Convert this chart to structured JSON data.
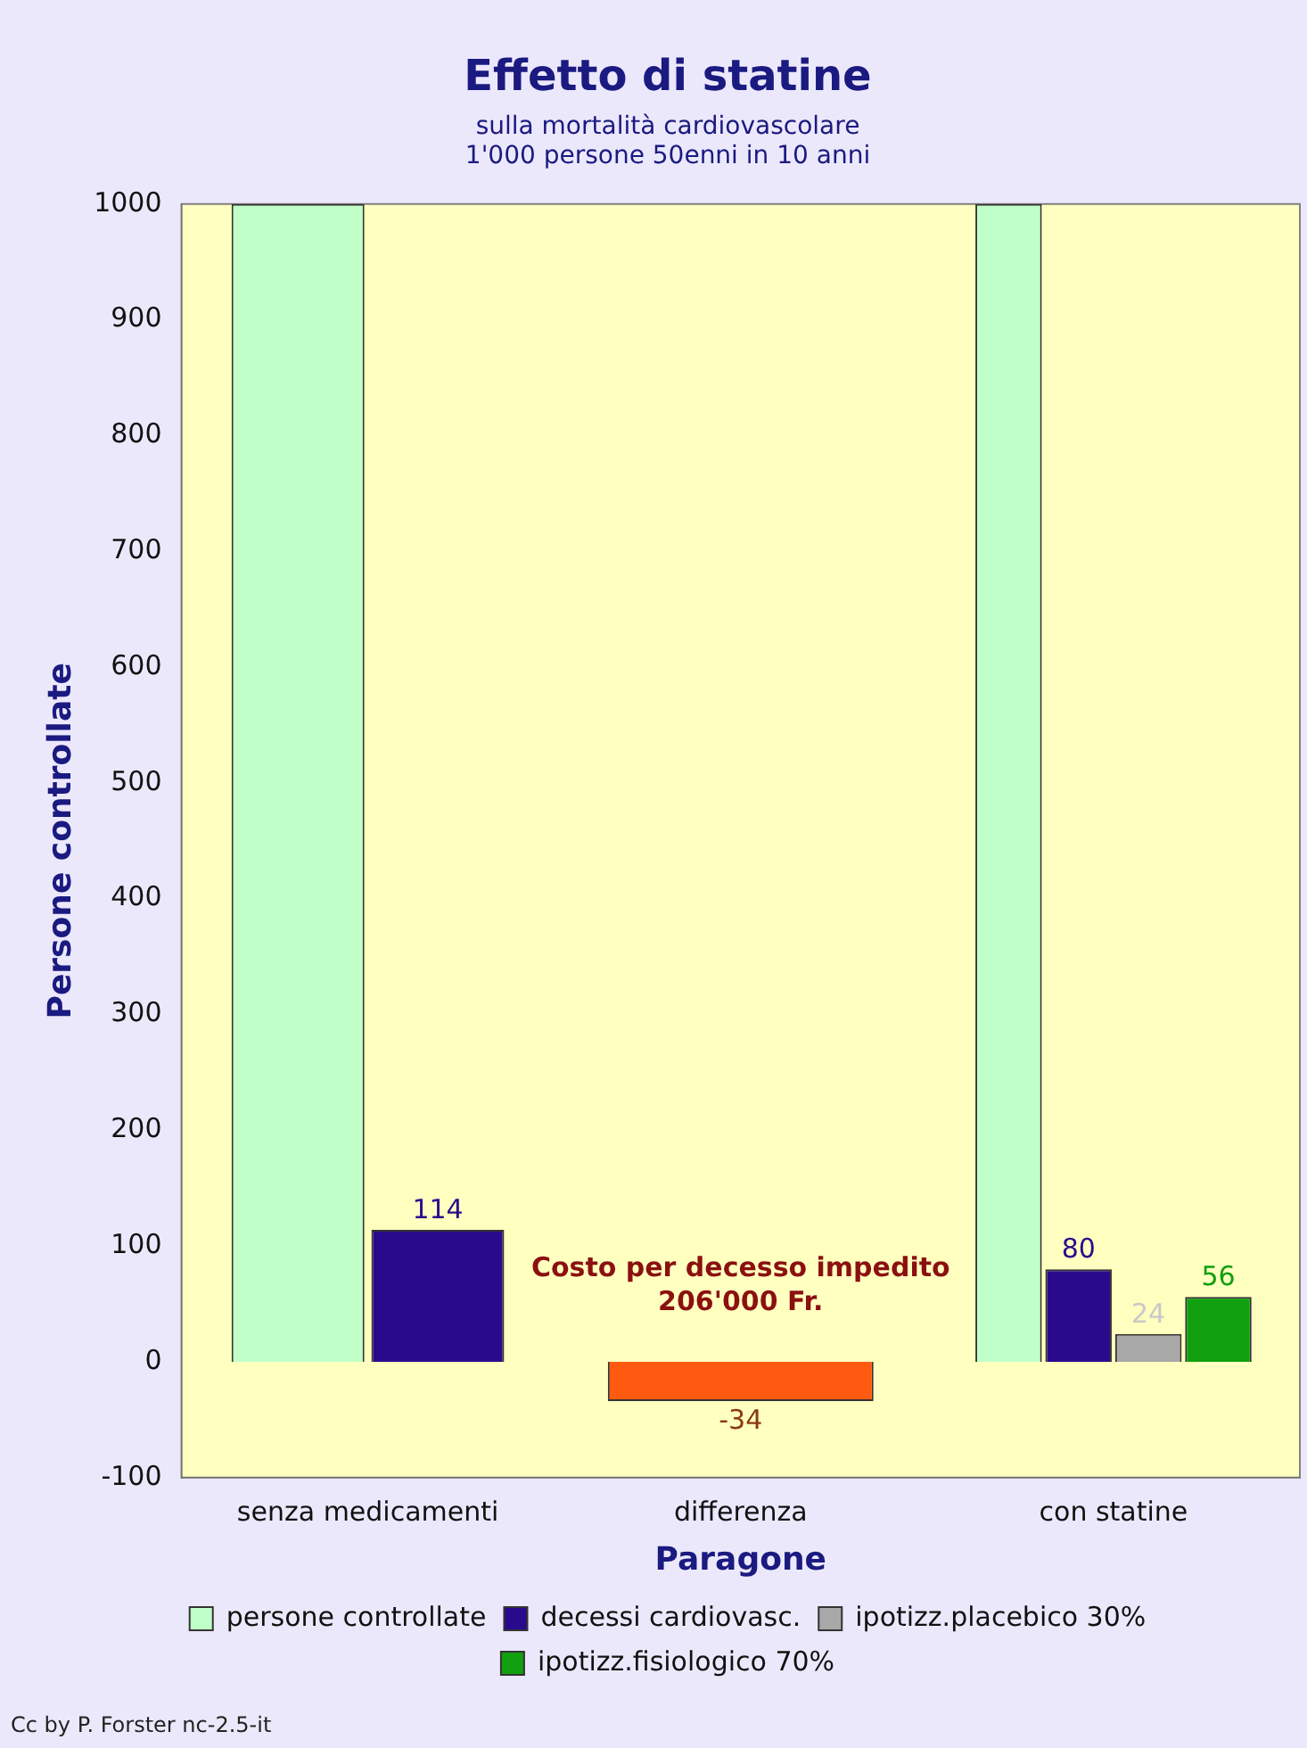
{
  "chart_data": {
    "type": "bar",
    "title": "Effetto di statine",
    "subtitle": "sulla mortalità cardiovascolare\n1'000 persone 50enni in 10 anni",
    "xlabel": "Paragone",
    "ylabel": "Persone controllate",
    "categories": [
      "senza medicamenti",
      "differenza",
      "con statine"
    ],
    "series": [
      {
        "name": "persone controllate",
        "color": "#c0ffc8",
        "values": [
          1000,
          null,
          1000
        ]
      },
      {
        "name": "decessi cardiovasc.",
        "color": "#2a0a8c",
        "values": [
          114,
          null,
          80
        ],
        "value_labels": [
          "114",
          null,
          "80"
        ]
      },
      {
        "color": "#ff5a10",
        "values": [
          null,
          -34,
          null
        ],
        "value_labels": [
          null,
          "-34",
          null
        ]
      },
      {
        "name": "ipotizz.placebico 30%",
        "color": "#a8a8a8",
        "values": [
          null,
          null,
          24
        ],
        "value_labels": [
          null,
          null,
          "24"
        ]
      },
      {
        "name": "ipotizz.fisiologico 70%",
        "color": "#10a010",
        "values": [
          null,
          null,
          56
        ],
        "value_labels": [
          null,
          null,
          "56"
        ]
      }
    ],
    "ylim": [
      -100,
      1000
    ],
    "yticks": [
      -100,
      0,
      100,
      200,
      300,
      400,
      500,
      600,
      700,
      800,
      900,
      1000
    ],
    "grid": false,
    "legend": "bottom",
    "annotations": [
      "Costo per decesso impedito\n206'000 Fr.",
      "Cc by P. Forster nc-2.5-it"
    ]
  }
}
